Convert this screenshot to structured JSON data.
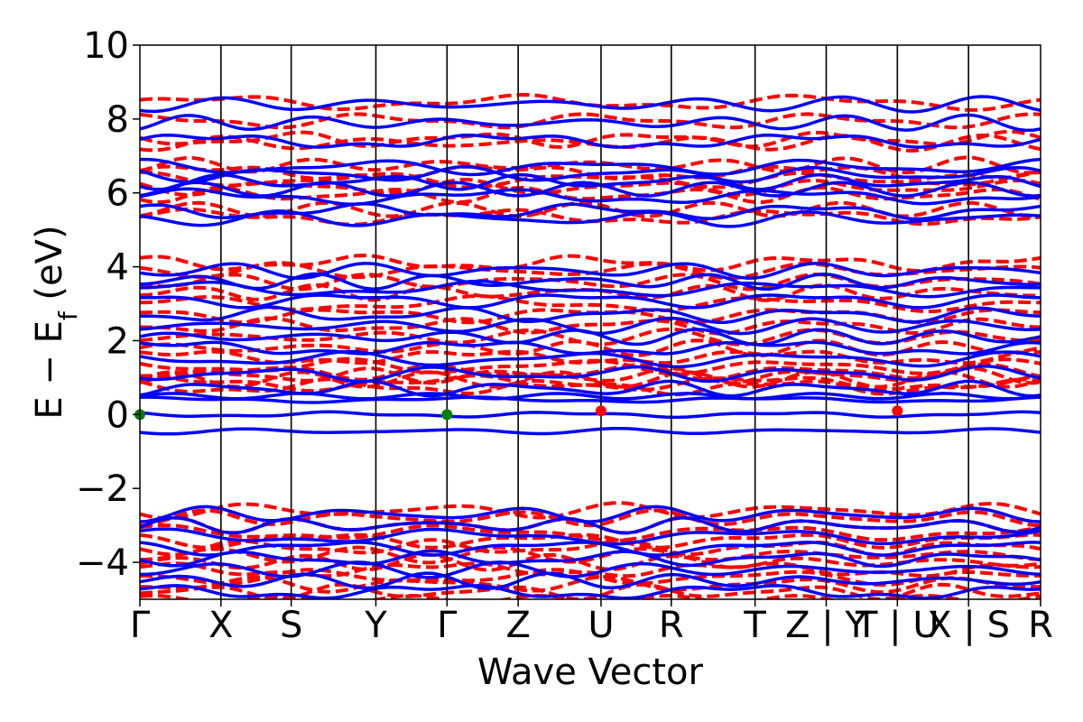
{
  "chart_data": {
    "type": "line",
    "title": "",
    "xlabel": "Wave Vector",
    "ylabel": "E − E",
    "ylabel_sub": "f",
    "ylabel_unit": " (eV)",
    "ylim": [
      -5,
      10
    ],
    "yticks": [
      -4,
      -2,
      0,
      2,
      4,
      6,
      8,
      10
    ],
    "ytick_labels": [
      "−4",
      "−2",
      "0",
      "2",
      "4",
      "6",
      "8",
      "10"
    ],
    "xlim": [
      0,
      1
    ],
    "kpoints": [
      {
        "label": "Γ",
        "x": 0.0
      },
      {
        "label": "X",
        "x": 0.09
      },
      {
        "label": "S",
        "x": 0.168
      },
      {
        "label": "Y",
        "x": 0.262
      },
      {
        "label": "Γ",
        "x": 0.341
      },
      {
        "label": "Z",
        "x": 0.42
      },
      {
        "label": "U",
        "x": 0.512
      },
      {
        "label": "R",
        "x": 0.59
      },
      {
        "label": "T",
        "x": 0.683
      },
      {
        "label": "Z | Y",
        "x": 0.762
      },
      {
        "label": "T | U",
        "x": 0.841
      },
      {
        "label": "X | S",
        "x": 0.92
      },
      {
        "label": "R",
        "x": 1.0
      }
    ],
    "grid": false,
    "legend": "none",
    "series": [
      {
        "style": "dashed",
        "color": "#ff0000"
      },
      {
        "style": "solid",
        "color": "#0000ff"
      }
    ],
    "band_levels": {
      "dashed": [
        8.45,
        7.95,
        7.45,
        7.35,
        6.75,
        6.55,
        6.35,
        6.15,
        5.95,
        5.55,
        5.35,
        4.1,
        3.9,
        3.6,
        3.3,
        3.0,
        2.7,
        2.4,
        2.1,
        1.8,
        1.55,
        1.3,
        1.15,
        1.05,
        0.95,
        0.85,
        0.75,
        -2.6,
        -2.8,
        -3.0,
        -3.2,
        -3.4,
        -3.6,
        -3.8,
        -4.0,
        -4.2,
        -4.4,
        -4.6,
        -4.8,
        -5.0
      ],
      "solid": [
        8.4,
        7.9,
        7.4,
        6.7,
        6.5,
        6.3,
        6.1,
        5.9,
        5.5,
        5.3,
        3.9,
        3.6,
        3.4,
        3.1,
        2.7,
        2.4,
        2.1,
        1.8,
        1.5,
        1.1,
        0.7,
        0.5,
        0.4,
        0.0,
        -0.45,
        -2.7,
        -3.0,
        -3.3,
        -3.6,
        -3.9,
        -4.2,
        -4.5,
        -4.8
      ]
    },
    "markers": [
      {
        "x": 0.0,
        "y": 0.0,
        "color": "#008000"
      },
      {
        "x": 0.341,
        "y": 0.0,
        "color": "#008000"
      },
      {
        "x": 0.512,
        "y": 0.1,
        "color": "#ff0000"
      },
      {
        "x": 0.841,
        "y": 0.1,
        "color": "#ff0000"
      }
    ]
  }
}
